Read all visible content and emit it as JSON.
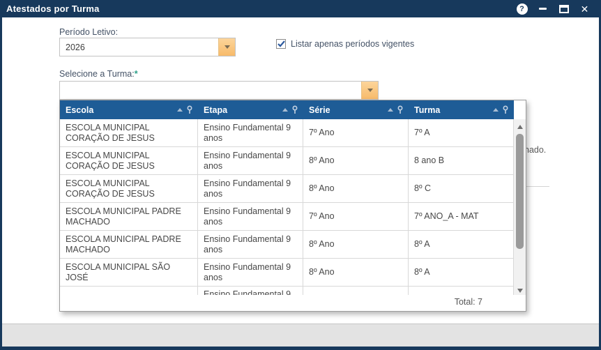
{
  "window": {
    "title": "Atestados por Turma",
    "titlebar_icons": {
      "help_glyph": "?",
      "minimize": "minimize-icon",
      "maximize": "maximize-icon",
      "close": "close-icon"
    }
  },
  "form": {
    "periodo": {
      "label": "Período Letivo:",
      "value": "2026"
    },
    "vigentes_checkbox": {
      "label": "Listar apenas períodos vigentes",
      "checked": true
    },
    "turma": {
      "label": "Selecione a Turma:",
      "required_marker": "*",
      "value": ""
    }
  },
  "background_text": {
    "clipped_message": "nado."
  },
  "grid": {
    "columns": [
      "Escola",
      "Etapa",
      "Série",
      "Turma"
    ],
    "rows": [
      [
        "ESCOLA MUNICIPAL CORAÇÃO DE JESUS",
        "Ensino Fundamental 9 anos",
        "7º Ano",
        "7º A"
      ],
      [
        "ESCOLA MUNICIPAL CORAÇÃO DE JESUS",
        "Ensino Fundamental 9 anos",
        "8º Ano",
        "8 ano B"
      ],
      [
        "ESCOLA MUNICIPAL CORAÇÃO DE JESUS",
        "Ensino Fundamental 9 anos",
        "8º Ano",
        "8º C"
      ],
      [
        "ESCOLA MUNICIPAL PADRE MACHADO",
        "Ensino Fundamental 9 anos",
        "7º Ano",
        "7º ANO_A - MAT"
      ],
      [
        "ESCOLA MUNICIPAL PADRE MACHADO",
        "Ensino Fundamental 9 anos",
        "8º Ano",
        "8º A"
      ],
      [
        "ESCOLA MUNICIPAL SÃO JOSÉ",
        "Ensino Fundamental 9 anos",
        "8º Ano",
        "8º A"
      ],
      [
        "",
        "Ensino Fundamental 9",
        "",
        ""
      ]
    ],
    "partial_row_index": 6,
    "total_label": "Total: 7"
  },
  "colors": {
    "titlebar": "#17395C",
    "grid_header": "#1E5C96",
    "combo_button": "#F9C57E",
    "required_marker": "#2FA089",
    "checkbox_check": "#2D5A9E",
    "footer_strip": "#E3E3E3"
  }
}
